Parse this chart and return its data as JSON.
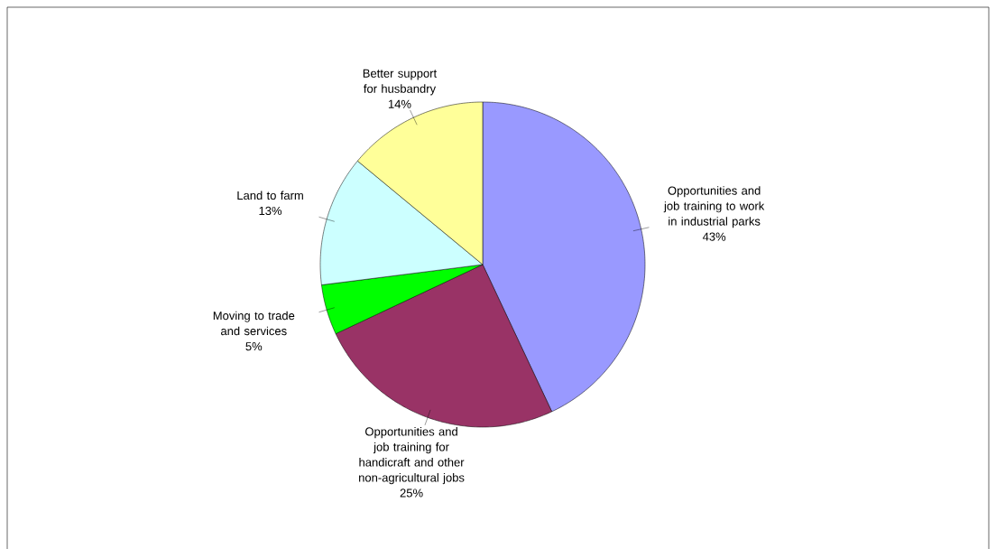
{
  "chart_data": {
    "type": "pie",
    "categories": [
      "Opportunities and job training to work in industrial parks",
      "Opportunities and job training for handicraft and other non-agricultural jobs",
      "Moving to trade and services",
      "Land to farm",
      "Better support for husbandry"
    ],
    "values": [
      43,
      25,
      5,
      13,
      14
    ],
    "value_labels": [
      "43%",
      "25%",
      "5%",
      "13%",
      "14%"
    ],
    "colors": [
      "#9999ff",
      "#993366",
      "#00ff00",
      "#ccffff",
      "#ffff99"
    ]
  }
}
